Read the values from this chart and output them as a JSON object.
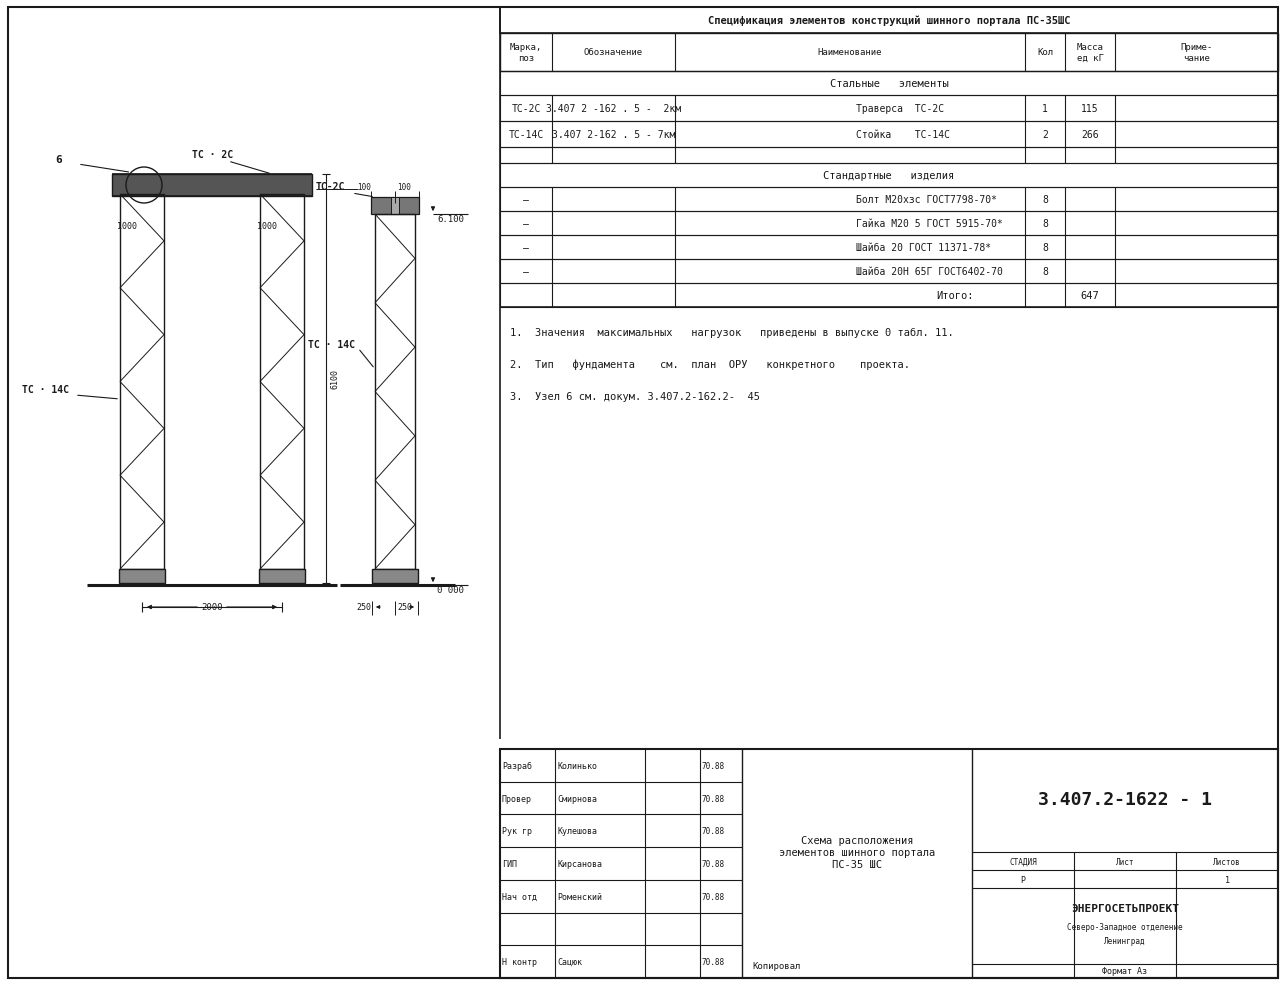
{
  "bg_color": "#ffffff",
  "line_color": "#1a1a1a",
  "spec_title": "Спецификация элементов конструкций шинного портала ПС-35ШС",
  "header_cols": [
    "Марка,\nпоз",
    "Обозначение",
    "Наименование",
    "Кол",
    "Масса\nед кГ",
    "Приме-\nчание"
  ],
  "steel_header": "Стальные   элементы",
  "steel_rows": [
    [
      "ТС-2С",
      "3.407 2 -162 . 5 -  2км",
      "Траверса  ТС-2С",
      "1",
      "115",
      ""
    ],
    [
      "ТС-14С",
      "3.407 2-162 . 5 - 7км",
      "Стойка    ТС-14С",
      "2",
      "266",
      ""
    ]
  ],
  "std_header": "Стандартные   изделия",
  "std_rows": [
    [
      "—",
      "",
      "Болт М20хзс ГОСТ7798-70*",
      "8",
      "",
      ""
    ],
    [
      "—",
      "",
      "Гайка М20 5 ГОСТ 5915-70*",
      "8",
      "",
      ""
    ],
    [
      "—",
      "",
      "Шайба 20 ГОСТ 11371-78*",
      "8",
      "",
      ""
    ],
    [
      "—",
      "",
      "Шайба 20Н 65Г ГОСТ6402-70",
      "8",
      "",
      ""
    ]
  ],
  "total_label": "Итого:",
  "total_mass": "647",
  "notes": [
    "1.  Значения  максимальных   нагрузок   приведены в выпуске 0 табл. 11.",
    "2.  Тип   фундамента    см.  план  ОРУ   конкретного    проекта.",
    "3.  Узел 6 см. докум. 3.407.2-162.2-  45"
  ],
  "tb_roles": [
    "Разраб",
    "Провер",
    "Рук гр",
    "ГИП",
    "Нач отд",
    "",
    "Н контр"
  ],
  "tb_names": [
    "Колинько",
    "Смирнова",
    "Кулешова",
    "Кирсанова",
    "Роменский",
    "",
    "Сацюк"
  ],
  "tb_dates": [
    "70.88",
    "70.88",
    "70.88",
    "70.88",
    "70.88",
    "",
    "70.88"
  ],
  "doc_number": "3.407.2-1622 - 1",
  "schema_title": "Схема расположения\nэлементов шинного портала\nПС-35 ШС",
  "stage": "СТАДИЯ",
  "sheet": "Лист",
  "sheets": "Листов",
  "stage_val": "Р",
  "sheet_val": "",
  "sheets_val": "1",
  "org": "ЭНЕРГОСЕТЬПРОЕКТ",
  "org_sub1": "Северо-Западное отделение",
  "org_sub2": "Ленинград",
  "format_label": "Формат Аз",
  "copy_label": "Копировал"
}
